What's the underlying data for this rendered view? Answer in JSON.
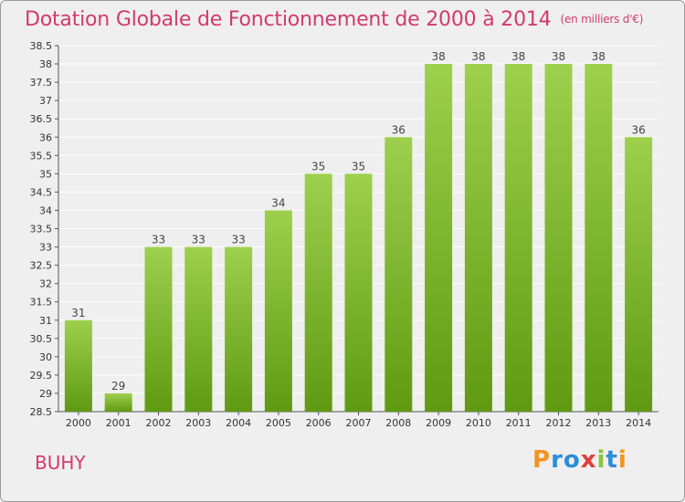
{
  "header": {
    "title": "Dotation Globale de Fonctionnement de 2000 à 2014",
    "unit": "(en milliers d'€)"
  },
  "footer": {
    "commune": "BUHY",
    "logo": "Proxiti"
  },
  "colors": {
    "title": "#d23a6f",
    "bar_top": "#9dd04d",
    "bar_bottom": "#5f9a12",
    "grid": "#ffffff",
    "background": "#efefef",
    "logo_letters": [
      "#f29421",
      "#2e8ed6",
      "#2e8ed6",
      "#e23c3c",
      "#8cc43a",
      "#2e8ed6",
      "#f29421"
    ]
  },
  "chart_data": {
    "type": "bar",
    "categories": [
      "2000",
      "2001",
      "2002",
      "2003",
      "2004",
      "2005",
      "2006",
      "2007",
      "2008",
      "2009",
      "2010",
      "2011",
      "2012",
      "2013",
      "2014"
    ],
    "values": [
      31,
      29,
      33,
      33,
      33,
      34,
      35,
      35,
      36,
      38,
      38,
      38,
      38,
      38,
      36
    ],
    "data_labels": [
      "31",
      "29",
      "33",
      "33",
      "33",
      "34",
      "35",
      "35",
      "36",
      "38",
      "38",
      "38",
      "38",
      "38",
      "36"
    ],
    "title": "Dotation Globale de Fonctionnement de 2000 à 2014",
    "ylim": [
      28.5,
      38.5
    ],
    "yticks": [
      "28.5",
      "29",
      "29.5",
      "30",
      "30.5",
      "31",
      "31.5",
      "32",
      "32.5",
      "33",
      "33.5",
      "34",
      "34.5",
      "35",
      "35.5",
      "36",
      "36.5",
      "37",
      "37.5",
      "38",
      "38.5"
    ],
    "grid": true
  }
}
